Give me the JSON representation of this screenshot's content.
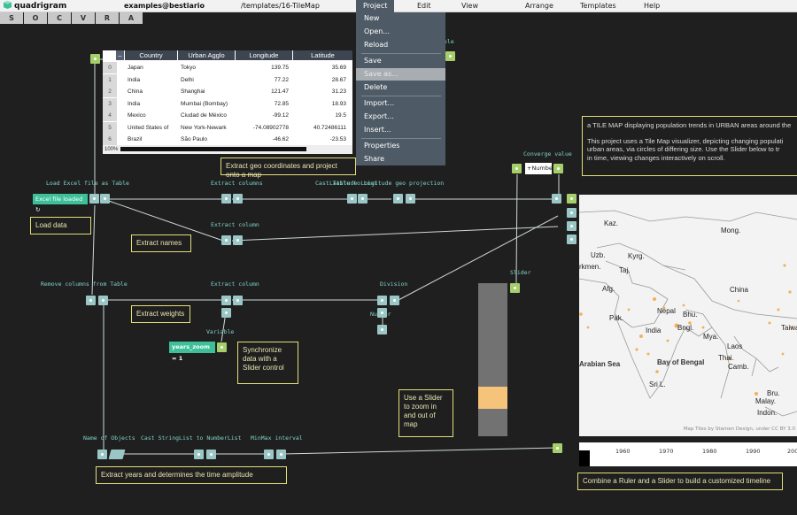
{
  "app": {
    "name": "quadrigram",
    "user": "examples@bestiario",
    "path": "/templates/16-TileMap"
  },
  "menu": [
    "Project",
    "Edit",
    "View",
    "Arrange",
    "Templates",
    "Help"
  ],
  "tabs": [
    "S",
    "O",
    "C",
    "V",
    "R",
    "A"
  ],
  "project_menu": {
    "items": [
      "New",
      "Open...",
      "Reload",
      "Save",
      "Save as...",
      "Delete",
      "Import...",
      "Export...",
      "Insert...",
      "Properties",
      "Share"
    ],
    "highlighted": "Save as..."
  },
  "table": {
    "columns": [
      "Country",
      "Urban Agglo",
      "Longitude",
      "Latitude"
    ],
    "rows": [
      [
        "0",
        "Japan",
        "Tokyo",
        "139.75",
        "35.69"
      ],
      [
        "1",
        "India",
        "Delhi",
        "77.22",
        "28.67"
      ],
      [
        "2",
        "China",
        "Shanghai",
        "121.47",
        "31.23"
      ],
      [
        "3",
        "India",
        "Mumbai (Bombay)",
        "72.85",
        "18.93"
      ],
      [
        "4",
        "Mexico",
        "Ciudad de México",
        "-99.12",
        "19.5"
      ],
      [
        "5",
        "United States of",
        "New York-Newark",
        "-74.08902778",
        "40.72486111"
      ],
      [
        "6",
        "Brazil",
        "São Paulo",
        "-46.62",
        "-23.53"
      ]
    ],
    "zoom": "100%"
  },
  "nodes": {
    "load_excel": "Load Excel file as Table",
    "excel_status": "Excel file loaded",
    "extract_columns": "Extract columns",
    "cast_geo": "Cast Table to List",
    "geo_projection": "Latitude Longitude geo projection",
    "extract_column_1": "Extract column",
    "remove_columns": "Remove columns from Table",
    "extract_column_2": "Extract column",
    "division": "Division",
    "number": "Number",
    "variable": "Variable",
    "variable_value": "years_zoom = 1",
    "converge": "Converge value",
    "number_input": "+Number",
    "slider": "Slider",
    "name_of_objects": "Name of Objects",
    "cast_stringlist": "Cast StringList to NumberList",
    "minmax": "MinMax interval",
    "table_label": "able"
  },
  "comments": {
    "load_data": "Load data",
    "extract_geo": "Extract geo coordinates and project onto a map",
    "extract_names": "Extract names",
    "extract_weights": "Extract weights",
    "synchronize": "Synchronize data with a Slider control",
    "use_slider": "Use a Slider to zoom in and out of map",
    "extract_years": "Extract years and determines the time amplitude",
    "ruler_slider": "Combine a Ruler and a Slider to build a customized timeline"
  },
  "description": {
    "title": "a TILE MAP displaying population trends in URBAN areas around the",
    "body_lines": [
      "This project uses a Tile Map visualizer, depicting changing populati",
      "urban areas, via circles of differing size.  Use the Slider below to tr",
      "in time, viewing changes interactively on scroll."
    ]
  },
  "map": {
    "labels": [
      "Kaz.",
      "Mong.",
      "Uzb.",
      "Kyrg.",
      "rkmen.",
      "Taj.",
      "Afg.",
      "China",
      "Nepal",
      "Bhu.",
      "Pak.",
      "India",
      "Bngl.",
      "Mya.",
      "Taiwa",
      "Laos",
      "Thai.",
      "Camb.",
      "Sri L.",
      "Bru.",
      "Malay.",
      "Indon."
    ],
    "seas": [
      "Arabian Sea",
      "Bay of Bengal"
    ],
    "credit": "Map Tiles by Stamen Design, under CC BY 3.0"
  },
  "ruler": {
    "years": [
      "1960",
      "1970",
      "1980",
      "1990",
      "200"
    ]
  },
  "slider_value": 0.72,
  "colors": {
    "port": "#9ac6c6",
    "green_port": "#a6ce6a",
    "comment": "#e3de7a",
    "accent": "#3dbf98",
    "menu": "#4e5b66",
    "slider_thumb": "#f5c47a"
  }
}
